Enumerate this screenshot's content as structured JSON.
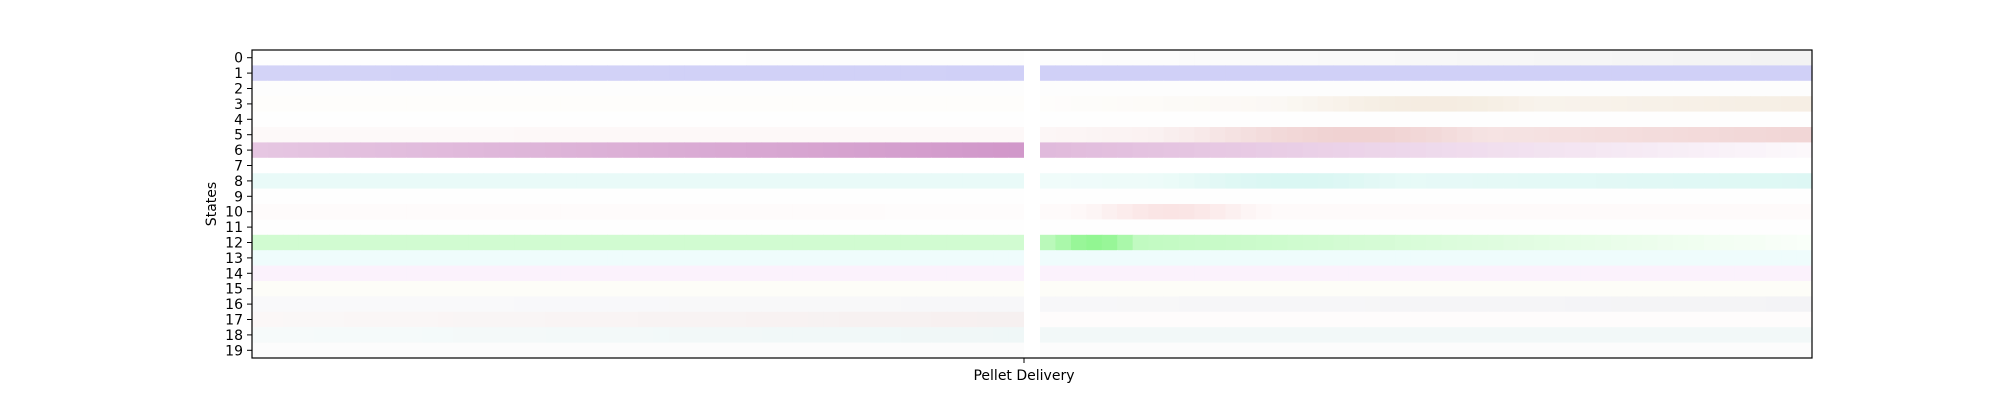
{
  "chart_data": {
    "type": "heatmap",
    "title": "",
    "ylabel": "States",
    "xlabel": "",
    "xticklabels": [
      "Pellet Delivery"
    ],
    "yticklabels": [
      "0",
      "1",
      "2",
      "3",
      "4",
      "5",
      "6",
      "7",
      "8",
      "9",
      "10",
      "11",
      "12",
      "13",
      "14",
      "15",
      "16",
      "17",
      "18",
      "19"
    ],
    "grid": false,
    "bins_per_segment": 50,
    "segments": [
      "pre",
      "post"
    ],
    "state_colors": [
      "#dcdcdc",
      "#c8c8f5",
      "#e6e6e6",
      "#ead9c2",
      "#f0e6e6",
      "#e6b4b4",
      "#cc8cc4",
      "#f4ecec",
      "#b4eee6",
      "#eeeeee",
      "#f5c8c8",
      "#eeeeee",
      "#8cf58c",
      "#d8f7f7",
      "#f0d2f4",
      "#f4f4d2",
      "#d8d8e0",
      "#e2cccc",
      "#d2e8e8",
      "#dcdcdc"
    ],
    "state_values": [
      {
        "pre": [
          0.03,
          0.05
        ],
        "post": [
          0.05,
          0.35
        ]
      },
      {
        "pre": [
          0.8,
          0.85
        ],
        "post": [
          0.85,
          0.85
        ]
      },
      {
        "pre": [
          0.08,
          0.08
        ],
        "post": [
          0.08,
          0.08
        ]
      },
      {
        "pre": [
          0.06,
          0.06
        ],
        "post": [
          0.06,
          0.45
        ]
      },
      {
        "pre": [
          0.06,
          0.06
        ],
        "post": [
          0.06,
          0.06
        ]
      },
      {
        "pre": [
          0.08,
          0.1
        ],
        "post": [
          0.12,
          0.55
        ]
      },
      {
        "pre": [
          0.5,
          0.9
        ],
        "post": [
          0.6,
          0.06
        ]
      },
      {
        "pre": [
          0.02,
          0.02
        ],
        "post": [
          0.02,
          0.02
        ]
      },
      {
        "pre": [
          0.3,
          0.3
        ],
        "post": [
          0.2,
          0.45
        ]
      },
      {
        "pre": [
          0.05,
          0.05
        ],
        "post": [
          0.05,
          0.05
        ]
      },
      {
        "pre": [
          0.08,
          0.06
        ],
        "post": [
          0.1,
          0.1
        ]
      },
      {
        "pre": [
          0.03,
          0.03
        ],
        "post": [
          0.03,
          0.03
        ]
      },
      {
        "pre": [
          0.4,
          0.4
        ],
        "post": [
          0.6,
          0.05
        ]
      },
      {
        "pre": [
          0.4,
          0.4
        ],
        "post": [
          0.4,
          0.4
        ]
      },
      {
        "pre": [
          0.3,
          0.3
        ],
        "post": [
          0.3,
          0.3
        ]
      },
      {
        "pre": [
          0.15,
          0.15
        ],
        "post": [
          0.15,
          0.15
        ]
      },
      {
        "pre": [
          0.15,
          0.2
        ],
        "post": [
          0.2,
          0.3
        ]
      },
      {
        "pre": [
          0.15,
          0.3
        ],
        "post": [
          0.05,
          0.05
        ]
      },
      {
        "pre": [
          0.2,
          0.35
        ],
        "post": [
          0.3,
          0.3
        ]
      },
      {
        "pre": [
          0.1,
          0.1
        ],
        "post": [
          0.1,
          0.1
        ]
      }
    ],
    "post_peaks": [
      {
        "state": 12,
        "bin": 3,
        "width": 4,
        "value": 0.95
      },
      {
        "state": 6,
        "bin": 0,
        "width": 1,
        "value": 0.6
      },
      {
        "state": 8,
        "bin": 16,
        "width": 10,
        "value": 0.5
      },
      {
        "state": 10,
        "bin": 8,
        "width": 5,
        "value": 0.5
      },
      {
        "state": 5,
        "bin": 20,
        "width": 12,
        "value": 0.6
      },
      {
        "state": 3,
        "bin": 25,
        "width": 10,
        "value": 0.5
      }
    ]
  }
}
